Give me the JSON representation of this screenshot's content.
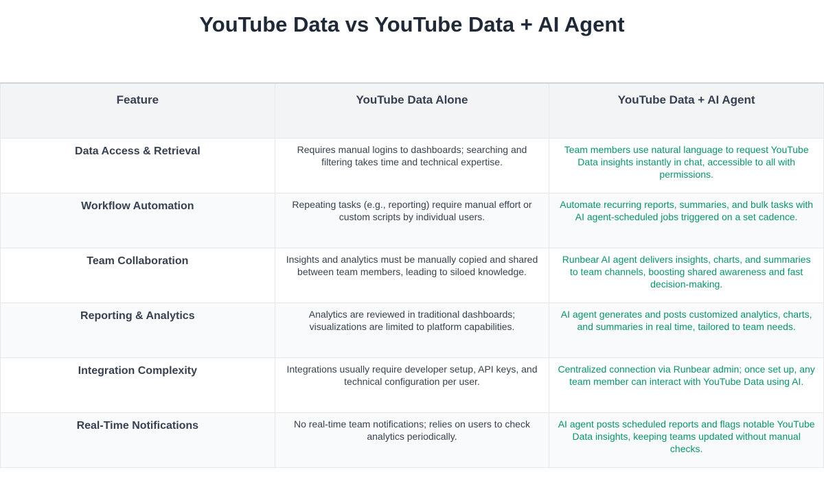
{
  "title": "YouTube Data vs YouTube Data + AI Agent",
  "headers": [
    "Feature",
    "YouTube Data Alone",
    "YouTube Data + AI Agent"
  ],
  "rows": [
    {
      "feature": "Data Access & Retrieval",
      "alone": "Requires manual logins to dashboards; searching and filtering takes time and technical expertise.",
      "ai": "Team members use natural language to request YouTube Data insights instantly in chat, accessible to all with permissions."
    },
    {
      "feature": "Workflow Automation",
      "alone": "Repeating tasks (e.g., reporting) require manual effort or custom scripts by individual users.",
      "ai": "Automate recurring reports, summaries, and bulk tasks with AI agent-scheduled jobs triggered on a set cadence."
    },
    {
      "feature": "Team Collaboration",
      "alone": "Insights and analytics must be manually copied and shared between team members, leading to siloed knowledge.",
      "ai": "Runbear AI agent delivers insights, charts, and summaries to team channels, boosting shared awareness and fast decision-making."
    },
    {
      "feature": "Reporting & Analytics",
      "alone": "Analytics are reviewed in traditional dashboards; visualizations are limited to platform capabilities.",
      "ai": "AI agent generates and posts customized analytics, charts, and summaries in real time, tailored to team needs."
    },
    {
      "feature": "Integration Complexity",
      "alone": "Integrations usually require developer setup, API keys, and technical configuration per user.",
      "ai": "Centralized connection via Runbear admin; once set up, any team member can interact with YouTube Data using AI."
    },
    {
      "feature": "Real-Time Notifications",
      "alone": "No real-time team notifications; relies on users to check analytics periodically.",
      "ai": "AI agent posts scheduled reports and flags notable YouTube Data insights, keeping teams updated without manual checks."
    }
  ],
  "colors": {
    "ai_text": "#059669",
    "header_bg": "#f3f4f6",
    "title": "#1f2937"
  }
}
